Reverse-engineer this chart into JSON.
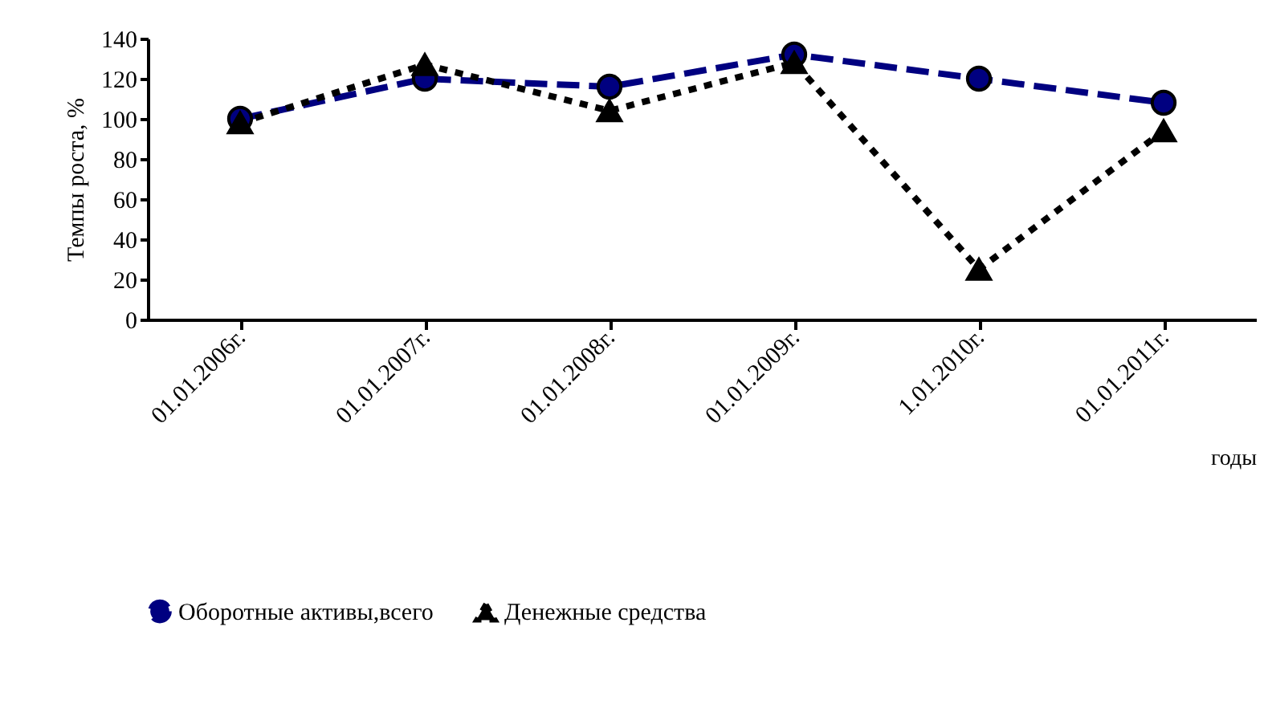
{
  "chart_data": {
    "type": "line",
    "ylabel": "Темпы роста, %",
    "xlabel": "годы",
    "categories": [
      "01.01.2006г.",
      "01.01.2007г.",
      "01.01.2008г.",
      "01.01.2009г.",
      "1.01.2010г.",
      "01.01.2011г."
    ],
    "series": [
      {
        "name": "Оборотные активы,всего",
        "color": "#000080",
        "marker": "circle",
        "line_style": "dashed",
        "values": [
          100,
          120,
          116,
          132,
          120,
          108
        ]
      },
      {
        "name": "Денежные средства",
        "color": "#000000",
        "marker": "triangle",
        "line_style": "dotted",
        "values": [
          98,
          127,
          104,
          128,
          25,
          94
        ]
      }
    ],
    "ylim": [
      0,
      140
    ],
    "yticks": [
      0,
      20,
      40,
      60,
      80,
      100,
      120,
      140
    ],
    "grid": false,
    "legend": "bottom"
  }
}
